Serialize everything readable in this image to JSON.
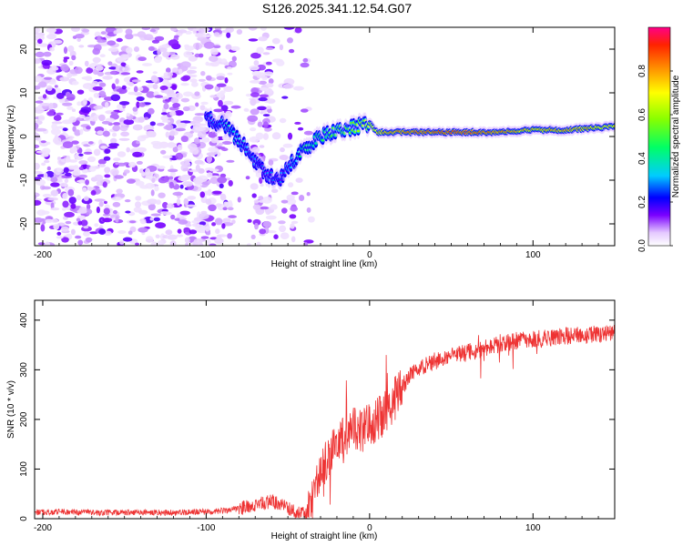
{
  "figure": {
    "title": "S126.2025.341.12.54.G07"
  },
  "chart_data": [
    {
      "type": "heatmap",
      "xlabel": "Height of straight line (km)",
      "ylabel": "Frequency (Hz)",
      "xlim": [
        -205,
        150
      ],
      "ylim": [
        -25,
        25
      ],
      "xticks": [
        -200,
        -100,
        0,
        100
      ],
      "yticks": [
        -20,
        -10,
        0,
        10,
        20
      ],
      "colorbar": {
        "label": "Normalized spectral amplitude",
        "range": [
          0,
          1
        ],
        "ticks": [
          0.0,
          0.2,
          0.4,
          0.6,
          0.8
        ]
      },
      "ridge": {
        "x": [
          -100,
          -90,
          -85,
          -75,
          -65,
          -55,
          -50,
          -45,
          -40,
          -30,
          -20,
          -10,
          -5,
          0,
          5,
          20,
          50,
          80,
          100,
          120,
          140,
          150
        ],
        "y": [
          4,
          3,
          1,
          -3,
          -8,
          -10,
          -7,
          -5,
          -3,
          0,
          1,
          2,
          2.5,
          3,
          1,
          1,
          1,
          1,
          1.5,
          1.5,
          2,
          2.5
        ],
        "amplitude": [
          0.25,
          0.3,
          0.35,
          0.3,
          0.25,
          0.25,
          0.3,
          0.35,
          0.4,
          0.45,
          0.5,
          0.55,
          0.6,
          0.65,
          0.75,
          0.85,
          0.9,
          0.85,
          0.75,
          0.8,
          0.75,
          0.7
        ]
      }
    },
    {
      "type": "line",
      "xlabel": "Height of straight line (km)",
      "ylabel": "SNR (10 * v/v)",
      "xlim": [
        -205,
        150
      ],
      "ylim": [
        0,
        440
      ],
      "xticks": [
        -200,
        -100,
        0,
        100
      ],
      "yticks": [
        0,
        100,
        200,
        300,
        400
      ],
      "color": "#ee3333",
      "series": [
        {
          "name": "SNR",
          "x": [
            -205,
            -190,
            -180,
            -160,
            -140,
            -120,
            -100,
            -90,
            -80,
            -70,
            -60,
            -50,
            -45,
            -40,
            -35,
            -30,
            -25,
            -20,
            -15,
            -10,
            -5,
            0,
            5,
            10,
            15,
            20,
            25,
            30,
            40,
            50,
            60,
            70,
            80,
            90,
            95,
            100,
            110,
            120,
            130,
            140,
            150
          ],
          "values": [
            12,
            14,
            13,
            12,
            13,
            12,
            14,
            16,
            20,
            28,
            35,
            22,
            12,
            10,
            40,
            90,
            130,
            150,
            165,
            180,
            175,
            190,
            200,
            215,
            240,
            265,
            290,
            305,
            318,
            328,
            335,
            342,
            352,
            358,
            362,
            360,
            365,
            368,
            370,
            372,
            373
          ]
        }
      ]
    }
  ]
}
